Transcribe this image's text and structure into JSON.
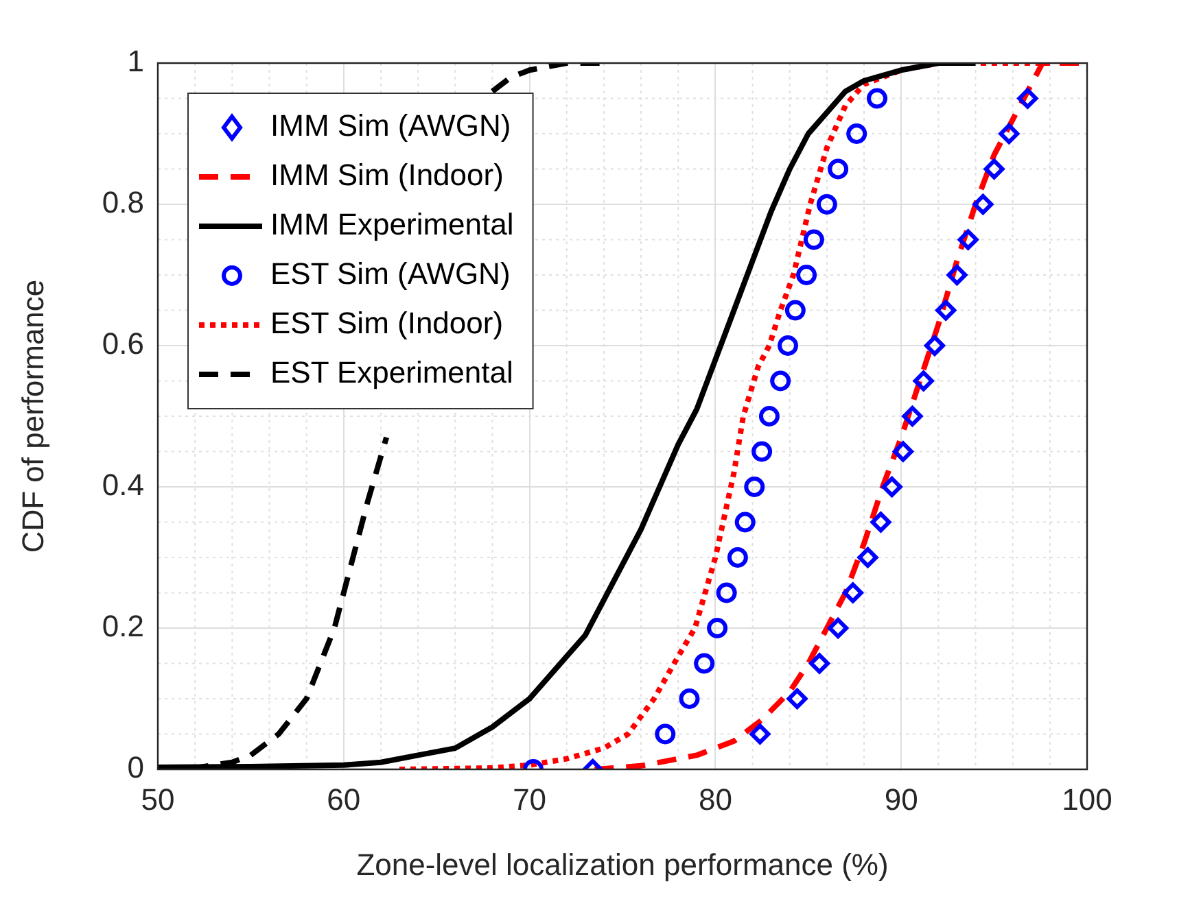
{
  "chart_data": {
    "type": "line",
    "xlabel": "Zone-level localization performance (%)",
    "ylabel": "CDF of performance",
    "xlim": [
      50,
      100
    ],
    "xticks": [
      50,
      60,
      70,
      80,
      90,
      100
    ],
    "ylim": [
      0,
      1
    ],
    "yticks": [
      0,
      0.2,
      0.4,
      0.6,
      0.8,
      1
    ],
    "grid": true,
    "legend": "top left",
    "series": [
      {
        "name": "IMM Sim (AWGN)",
        "type": "scatter",
        "marker": "diamond",
        "color": "#0000ff",
        "x": [
          73.4,
          82.4,
          84.4,
          85.6,
          86.6,
          87.4,
          88.2,
          88.9,
          89.5,
          90.1,
          90.6,
          91.2,
          91.8,
          92.4,
          93.0,
          93.6,
          94.4,
          95.0,
          95.8,
          96.8
        ],
        "values": [
          0,
          0.05,
          0.1,
          0.15,
          0.2,
          0.25,
          0.3,
          0.35,
          0.4,
          0.45,
          0.5,
          0.55,
          0.6,
          0.65,
          0.7,
          0.75,
          0.8,
          0.85,
          0.9,
          0.95
        ]
      },
      {
        "name": "IMM Sim (Indoor)",
        "type": "line",
        "line_style": "dashed",
        "color": "#ff0000",
        "x": [
          73.5,
          76,
          79,
          81,
          82.5,
          84,
          85,
          86,
          87,
          88,
          89,
          90,
          91,
          92,
          93,
          94,
          95,
          96,
          97,
          97.6,
          100
        ],
        "values": [
          0,
          0.005,
          0.02,
          0.04,
          0.07,
          0.11,
          0.15,
          0.2,
          0.25,
          0.32,
          0.4,
          0.47,
          0.55,
          0.63,
          0.72,
          0.8,
          0.87,
          0.92,
          0.97,
          1,
          1
        ]
      },
      {
        "name": "IMM Experimental",
        "type": "line",
        "line_style": "solid",
        "color": "#000000",
        "x": [
          50,
          55,
          60,
          62,
          64,
          66,
          68,
          70,
          71,
          72,
          73,
          74,
          75,
          76,
          77,
          78,
          79,
          80,
          81,
          82,
          83,
          84,
          85,
          86,
          87,
          88,
          90,
          92,
          94
        ],
        "values": [
          0.003,
          0.004,
          0.006,
          0.01,
          0.02,
          0.03,
          0.06,
          0.1,
          0.13,
          0.16,
          0.19,
          0.24,
          0.29,
          0.34,
          0.4,
          0.46,
          0.51,
          0.58,
          0.65,
          0.72,
          0.79,
          0.85,
          0.9,
          0.93,
          0.96,
          0.975,
          0.99,
          1,
          1
        ]
      },
      {
        "name": "EST Sim (AWGN)",
        "type": "scatter",
        "marker": "circle",
        "color": "#0000ff",
        "x": [
          70.2,
          77.3,
          78.6,
          79.4,
          80.1,
          80.6,
          81.2,
          81.6,
          82.1,
          82.5,
          82.9,
          83.5,
          83.9,
          84.3,
          84.9,
          85.3,
          86.0,
          86.6,
          87.6,
          88.7
        ],
        "values": [
          0,
          0.05,
          0.1,
          0.15,
          0.2,
          0.25,
          0.3,
          0.35,
          0.4,
          0.45,
          0.5,
          0.55,
          0.6,
          0.65,
          0.7,
          0.75,
          0.8,
          0.85,
          0.9,
          0.95
        ]
      },
      {
        "name": "EST Sim (Indoor)",
        "type": "line",
        "line_style": "dotted",
        "color": "#ff0000",
        "x": [
          63,
          68,
          70,
          72,
          74,
          75.3,
          76.7,
          78,
          78.9,
          80,
          81,
          81.5,
          82.3,
          82.9,
          83.5,
          84.2,
          85.1,
          86,
          87,
          88,
          90,
          92,
          98
        ],
        "values": [
          0,
          0.002,
          0.006,
          0.015,
          0.03,
          0.05,
          0.1,
          0.16,
          0.2,
          0.3,
          0.42,
          0.5,
          0.57,
          0.6,
          0.65,
          0.7,
          0.8,
          0.88,
          0.94,
          0.97,
          0.99,
          1,
          1
        ]
      },
      {
        "name": "EST Experimental",
        "type": "line",
        "line_style": "dashed",
        "color": "#000000",
        "x": [
          50,
          52,
          54,
          55,
          56.5,
          58,
          59.5,
          60.5,
          61.3,
          62.3,
          65,
          68,
          69,
          70,
          72,
          74
        ],
        "values": [
          0,
          0.002,
          0.01,
          0.02,
          0.05,
          0.1,
          0.2,
          0.3,
          0.38,
          0.47,
          null,
          0.96,
          0.98,
          0.99,
          1,
          1
        ]
      }
    ]
  }
}
